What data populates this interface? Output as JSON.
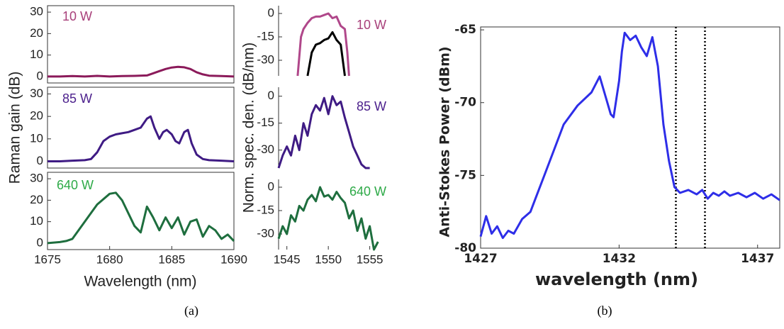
{
  "chart_data": [
    {
      "type": "line",
      "ylabel": "Raman gain (dB)",
      "annotation": "10 W",
      "annotation_color": "#a8407a",
      "x": [
        1675,
        1676,
        1677,
        1678,
        1679,
        1680,
        1681,
        1682,
        1683,
        1683.5,
        1684,
        1684.5,
        1685,
        1685.5,
        1686,
        1686.5,
        1687,
        1687.5,
        1688,
        1689,
        1690
      ],
      "series": [
        {
          "color": "#8b1a5a",
          "values": [
            0,
            0,
            0.2,
            0,
            0.3,
            0,
            0.2,
            0.3,
            0.5,
            1.5,
            2.5,
            3.5,
            4.2,
            4.5,
            4.3,
            3.5,
            2,
            1,
            0.4,
            0.2,
            0
          ]
        }
      ],
      "xlim": [
        1675,
        1690
      ],
      "ylim": [
        -3,
        33
      ],
      "yticks": [
        0,
        10,
        20,
        30
      ]
    },
    {
      "type": "line",
      "annotation": "85 W",
      "annotation_color": "#4b1f8c",
      "x": [
        1675,
        1676,
        1677,
        1678,
        1678.5,
        1679,
        1679.5,
        1680,
        1680.5,
        1681,
        1681.5,
        1682,
        1682.5,
        1683,
        1683.3,
        1683.6,
        1684,
        1684.3,
        1684.6,
        1685,
        1685.3,
        1685.6,
        1686,
        1686.3,
        1686.6,
        1687,
        1687.5,
        1688,
        1689,
        1690
      ],
      "series": [
        {
          "color": "#3f1b84",
          "values": [
            0,
            0,
            0.3,
            0.5,
            1,
            4,
            9,
            11,
            12,
            12.5,
            13,
            14,
            15,
            19,
            20,
            15,
            10,
            13,
            14,
            12,
            9,
            8,
            13,
            14,
            8,
            3,
            1,
            0.5,
            0.3,
            0
          ]
        }
      ],
      "xlim": [
        1675,
        1690
      ],
      "ylim": [
        -3,
        33
      ],
      "yticks": [
        0,
        10,
        20,
        30
      ]
    },
    {
      "type": "line",
      "xlabel": "Wavelength (nm)",
      "annotation": "640 W",
      "annotation_color": "#2eaa48",
      "x": [
        1675,
        1676,
        1676.5,
        1677,
        1678,
        1679,
        1680,
        1680.5,
        1681,
        1682,
        1682.5,
        1683,
        1683.5,
        1684,
        1684.5,
        1685,
        1685.5,
        1686,
        1686.5,
        1687,
        1687.5,
        1688,
        1688.5,
        1689,
        1689.5,
        1690
      ],
      "series": [
        {
          "color": "#1e6e3e",
          "values": [
            0,
            0.5,
            1,
            2,
            10,
            18,
            23,
            23.5,
            20,
            8,
            5,
            17,
            12,
            6,
            12,
            7,
            12,
            4,
            10,
            11,
            3,
            8,
            6,
            2,
            4,
            1
          ]
        }
      ],
      "xlim": [
        1675,
        1690
      ],
      "ylim": [
        -3,
        33
      ],
      "yticks": [
        0,
        10,
        20,
        30
      ],
      "xticks": [
        1675,
        1680,
        1685,
        1690
      ]
    },
    {
      "type": "line",
      "ylabel": "Norm. spec. den. (dB/nm)",
      "annotation": "10 W",
      "annotation_color": "#a8407a",
      "x": [
        1546.3,
        1546.7,
        1547,
        1547.5,
        1548,
        1548.5,
        1549,
        1549.5,
        1550,
        1550.5,
        1551,
        1551.5,
        1552,
        1552.3,
        1552.5
      ],
      "series": [
        {
          "color": "#b0478a",
          "values": [
            -40,
            -15,
            -10,
            -6,
            -3,
            -2,
            -2,
            -1,
            0,
            -3,
            -2,
            -8,
            -10,
            -25,
            -40
          ]
        },
        {
          "color": "#000000",
          "values": [
            null,
            null,
            null,
            -40,
            -25,
            -20,
            -19,
            -17,
            -16,
            -12,
            -17,
            -20,
            -40,
            null,
            null
          ]
        }
      ],
      "xlim": [
        1544,
        1557
      ],
      "ylim": [
        -40,
        5
      ],
      "yticks": [
        0,
        -15,
        -30
      ]
    },
    {
      "type": "line",
      "annotation": "85 W",
      "annotation_color": "#4b1f8c",
      "x": [
        1544,
        1544.5,
        1545,
        1545.5,
        1546,
        1546.5,
        1547,
        1547.5,
        1548,
        1548.5,
        1549,
        1549.5,
        1550,
        1550.5,
        1551,
        1551.5,
        1552,
        1552.5,
        1553,
        1553.5,
        1554,
        1554.5,
        1555
      ],
      "series": [
        {
          "color": "#3f1b84",
          "values": [
            -40,
            -33,
            -28,
            -33,
            -22,
            -30,
            -15,
            -22,
            -10,
            -5,
            -8,
            -1,
            -10,
            0,
            -5,
            -3,
            -12,
            -20,
            -28,
            -33,
            -38,
            -40,
            -40
          ]
        }
      ],
      "xlim": [
        1544,
        1557
      ],
      "ylim": [
        -40,
        5
      ],
      "yticks": [
        0,
        -15,
        -30
      ]
    },
    {
      "type": "line",
      "annotation": "640 W",
      "annotation_color": "#2eaa48",
      "x": [
        1544,
        1544.5,
        1545,
        1545.5,
        1546,
        1546.5,
        1547,
        1547.5,
        1548,
        1548.5,
        1549,
        1549.5,
        1550,
        1550.5,
        1551,
        1551.5,
        1552,
        1552.5,
        1553,
        1553.5,
        1554,
        1554.5,
        1555,
        1555.5,
        1556
      ],
      "series": [
        {
          "color": "#1e6e3e",
          "values": [
            -33,
            -25,
            -30,
            -18,
            -22,
            -12,
            -15,
            -8,
            -5,
            -9,
            0,
            -6,
            -5,
            -8,
            -3,
            -7,
            -10,
            -20,
            -15,
            -28,
            -20,
            -33,
            -25,
            -40,
            -35
          ]
        }
      ],
      "xlim": [
        1544,
        1557
      ],
      "ylim": [
        -40,
        5
      ],
      "yticks": [
        0,
        -15,
        -30
      ],
      "xticks": [
        1545,
        1550,
        1555
      ]
    },
    {
      "type": "line",
      "ylabel": "Anti-Stokes Power (dBm)",
      "xlabel": "wavelength (nm)",
      "x": [
        1427,
        1427.2,
        1427.4,
        1427.6,
        1427.8,
        1428,
        1428.2,
        1428.5,
        1428.8,
        1429,
        1429.3,
        1429.6,
        1430,
        1430.5,
        1431,
        1431.3,
        1431.5,
        1431.7,
        1431.8,
        1432,
        1432.1,
        1432.2,
        1432.4,
        1432.6,
        1432.8,
        1433,
        1433.2,
        1433.4,
        1433.6,
        1433.8,
        1434,
        1434.2,
        1434.5,
        1434.8,
        1435,
        1435.2,
        1435.4,
        1435.6,
        1435.8,
        1436,
        1436.3,
        1436.6,
        1436.9,
        1437.2,
        1437.5,
        1437.8
      ],
      "series": [
        {
          "color": "#2e2ee8",
          "values": [
            -79.2,
            -77.8,
            -79,
            -78.5,
            -79.3,
            -78.8,
            -79,
            -78,
            -77.5,
            -76.5,
            -75,
            -73.5,
            -71.5,
            -70.2,
            -69.3,
            -68.2,
            -69.5,
            -70.8,
            -71,
            -68.5,
            -66.5,
            -65.2,
            -65.7,
            -65.4,
            -66.2,
            -66.8,
            -65.5,
            -67.5,
            -71.5,
            -74,
            -75.8,
            -76.2,
            -76,
            -76.3,
            -76,
            -76.6,
            -76.2,
            -76.4,
            -76.1,
            -76.4,
            -76.2,
            -76.5,
            -76.2,
            -76.6,
            -76.3,
            -76.7
          ]
        }
      ],
      "xlim": [
        1427,
        1437.8
      ],
      "ylim": [
        -80,
        -64.8
      ],
      "yticks": [
        -65,
        -70,
        -75,
        -80
      ],
      "xticks": [
        1427,
        1432,
        1437
      ],
      "vlines": [
        1434.05,
        1435.1
      ]
    }
  ],
  "figure_labels": [
    "(a)",
    "(b)"
  ]
}
